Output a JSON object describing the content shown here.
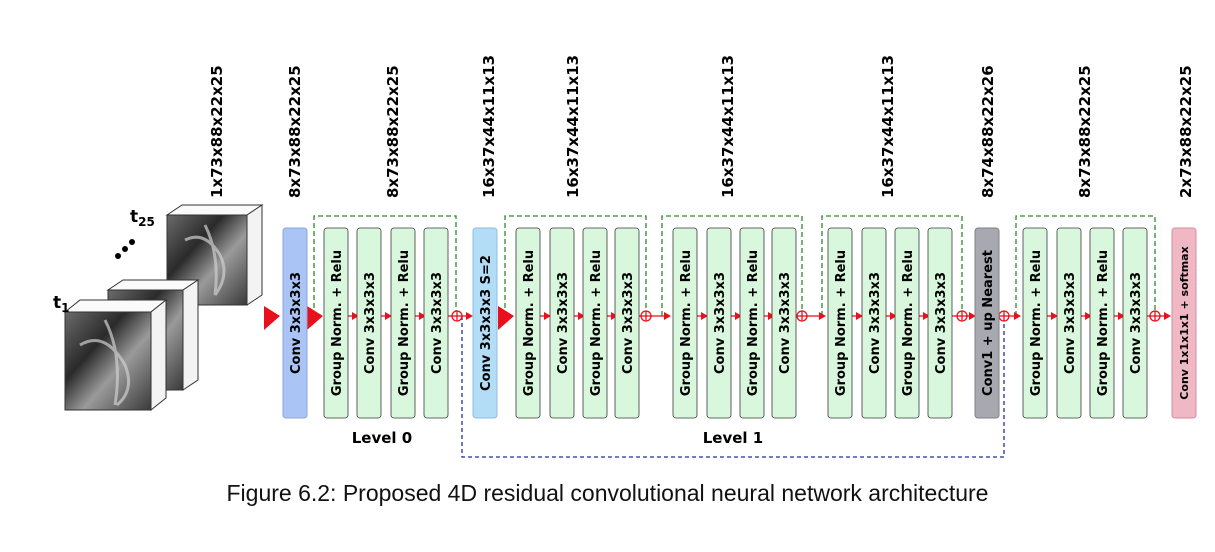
{
  "caption": "Figure 6.2: Proposed 4D residual convolutional neural network architecture",
  "input": {
    "label_first": "t",
    "sub_first": "1",
    "label_last": "t",
    "sub_last": "25",
    "ellipsis": "•••"
  },
  "dimensions": [
    "1x73x88x22x25",
    "8x73x88x22x25",
    "8x73x88x22x25",
    "16x37x44x11x13",
    "16x37x44x11x13",
    "16x37x44x11x13",
    "16x37x44x11x13",
    "8x74x88x22x26",
    "8x73x88x22x25",
    "2x73x88x22x25"
  ],
  "blocks": {
    "conv_in": "Conv 3x3x3x3",
    "group_norm": "Group Norm. + Relu",
    "conv": "Conv 3x3x3x3",
    "conv_stride": "Conv 3x3x3x3 S=2",
    "conv_up": "Conv1 + up Nearest",
    "conv_out": "Conv 1x1x1x1 + softmax"
  },
  "levels": {
    "level0": "Level 0",
    "level1": "Level 1"
  },
  "colors": {
    "conv_in": "#a9c4f5",
    "residual_block": "#d9f7dc",
    "conv_stride": "#b3dcf7",
    "conv_up": "#a8a8b0",
    "conv_out": "#f0b8c4",
    "arrow": "#e8101a",
    "skip_green": "#2f8a2f",
    "skip_blue": "#1f2fa0"
  }
}
